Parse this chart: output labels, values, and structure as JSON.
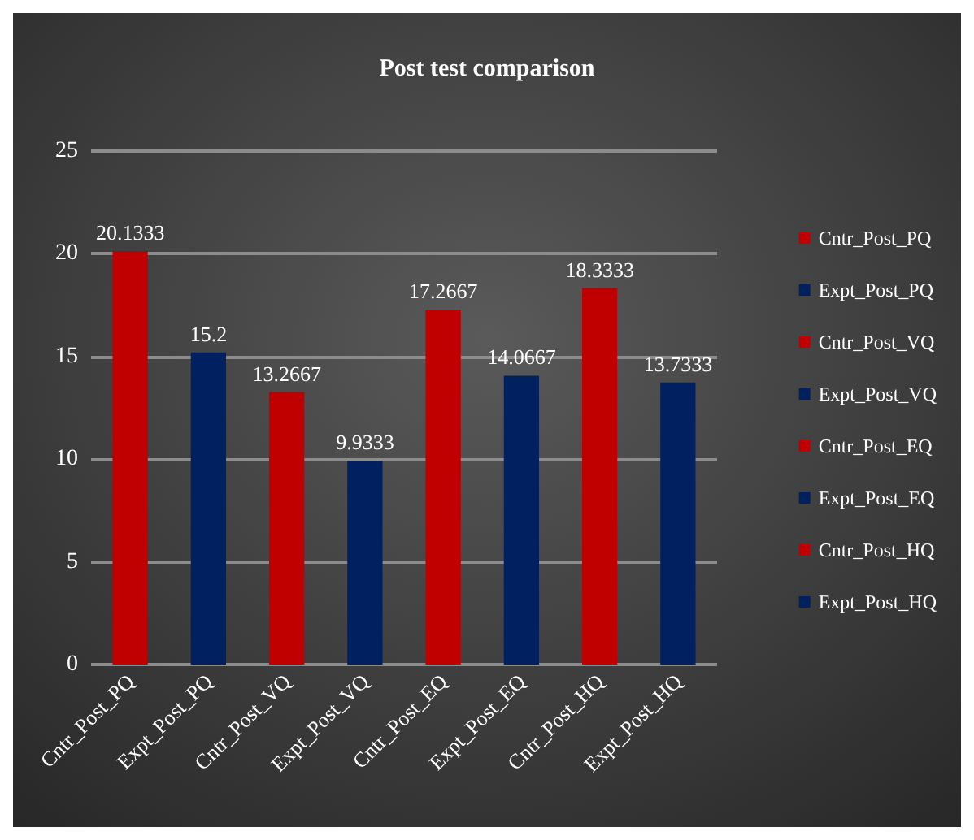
{
  "chart_data": {
    "type": "bar",
    "title": "Post test comparison",
    "stacked": true,
    "categories": [
      "Cntr_Post_PQ",
      "Expt_Post_PQ",
      "Cntr_Post_VQ",
      "Expt_Post_VQ",
      "Cntr_Post_EQ",
      "Expt_Post_EQ",
      "Cntr_Post_HQ",
      "Expt_Post_HQ"
    ],
    "series": [
      {
        "name": "Cntr_Post_PQ",
        "color": "#c00000",
        "values": [
          20.1333,
          null,
          null,
          null,
          null,
          null,
          null,
          null
        ]
      },
      {
        "name": "Expt_Post_PQ",
        "color": "#002060",
        "values": [
          null,
          15.2,
          null,
          null,
          null,
          null,
          null,
          null
        ]
      },
      {
        "name": "Cntr_Post_VQ",
        "color": "#c00000",
        "values": [
          null,
          null,
          13.2667,
          null,
          null,
          null,
          null,
          null
        ]
      },
      {
        "name": "Expt_Post_VQ",
        "color": "#002060",
        "values": [
          null,
          null,
          null,
          9.9333,
          null,
          null,
          null,
          null
        ]
      },
      {
        "name": "Cntr_Post_EQ",
        "color": "#c00000",
        "values": [
          null,
          null,
          null,
          null,
          17.2667,
          null,
          null,
          null
        ]
      },
      {
        "name": "Expt_Post_EQ",
        "color": "#002060",
        "values": [
          null,
          null,
          null,
          null,
          null,
          14.0667,
          null,
          null
        ]
      },
      {
        "name": "Cntr_Post_HQ",
        "color": "#c00000",
        "values": [
          null,
          null,
          null,
          null,
          null,
          null,
          18.3333,
          null
        ]
      },
      {
        "name": "Expt_Post_HQ",
        "color": "#002060",
        "values": [
          null,
          null,
          null,
          null,
          null,
          null,
          null,
          13.7333
        ]
      }
    ],
    "ylim": [
      0,
      25
    ],
    "yticks": [
      0,
      5,
      10,
      15,
      20,
      25
    ],
    "grid": "y",
    "legend": "right",
    "data_labels": true
  }
}
